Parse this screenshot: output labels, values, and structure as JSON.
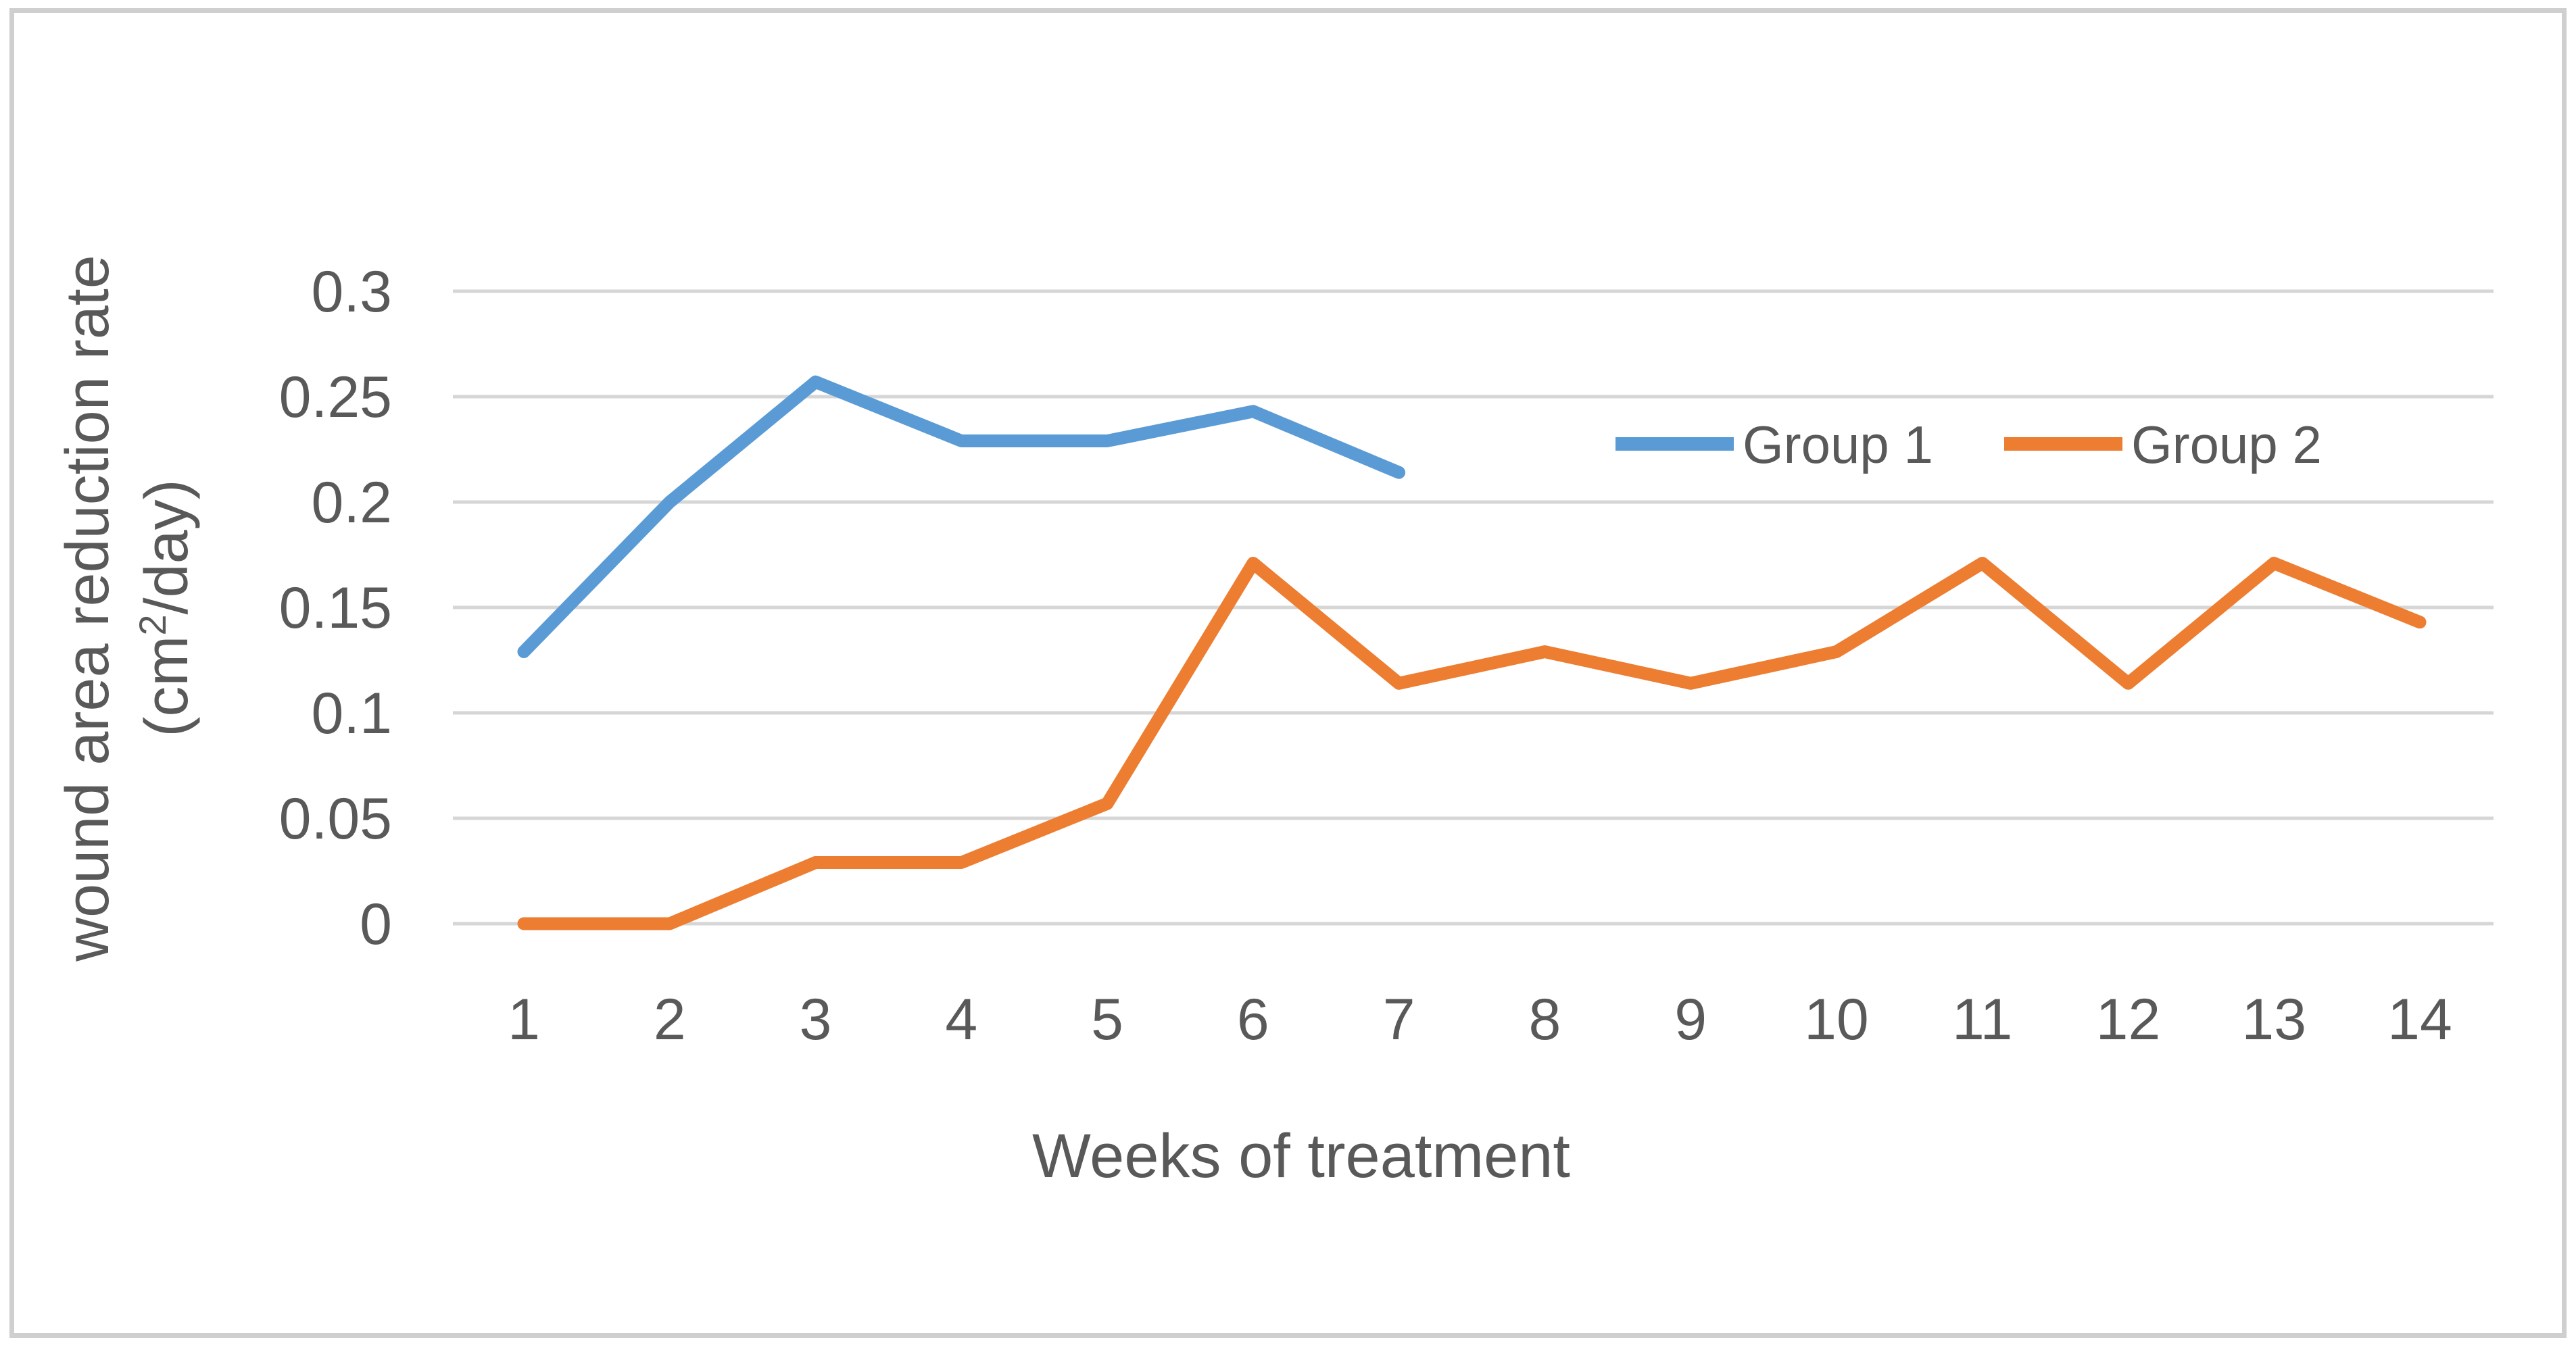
{
  "figure": {
    "background": "#ffffff",
    "border_color": "#cfcfcf"
  },
  "chart_data": {
    "type": "line",
    "title": "",
    "xlabel": "Weeks of treatment",
    "ylabel_line1": "wound area reduction rate",
    "ylabel_unit_pre": "(cm",
    "ylabel_unit_sup": "2",
    "ylabel_unit_post": "/day)",
    "categories": [
      1,
      2,
      3,
      4,
      5,
      6,
      7,
      8,
      9,
      10,
      11,
      12,
      13,
      14
    ],
    "x_tick_labels": [
      "1",
      "2",
      "3",
      "4",
      "5",
      "6",
      "7",
      "8",
      "9",
      "10",
      "11",
      "12",
      "13",
      "14"
    ],
    "y_ticks": [
      {
        "value": 0.3,
        "label": "0.3"
      },
      {
        "value": 0.25,
        "label": "0.25"
      },
      {
        "value": 0.2,
        "label": "0.2"
      },
      {
        "value": 0.15,
        "label": "0.15"
      },
      {
        "value": 0.1,
        "label": "0.1"
      },
      {
        "value": 0.05,
        "label": "0.05"
      },
      {
        "value": 0,
        "label": "0"
      }
    ],
    "ylim": [
      0,
      0.3
    ],
    "grid": true,
    "grid_color": "#d6d6d6",
    "text_color": "#595959",
    "legend_position": "inside-upper-right",
    "series": [
      {
        "name": "Group 1",
        "color": "#5b9bd5",
        "start_week": 1,
        "values": [
          0.129,
          0.2,
          0.257,
          0.229,
          0.229,
          0.243,
          0.214
        ]
      },
      {
        "name": "Group 2",
        "color": "#ed7d31",
        "start_week": 1,
        "values": [
          0,
          0,
          0.029,
          0.029,
          0.057,
          0.171,
          0.114,
          0.129,
          0.114,
          0.129,
          0.171,
          0.114,
          0.171,
          0.143
        ]
      }
    ]
  }
}
